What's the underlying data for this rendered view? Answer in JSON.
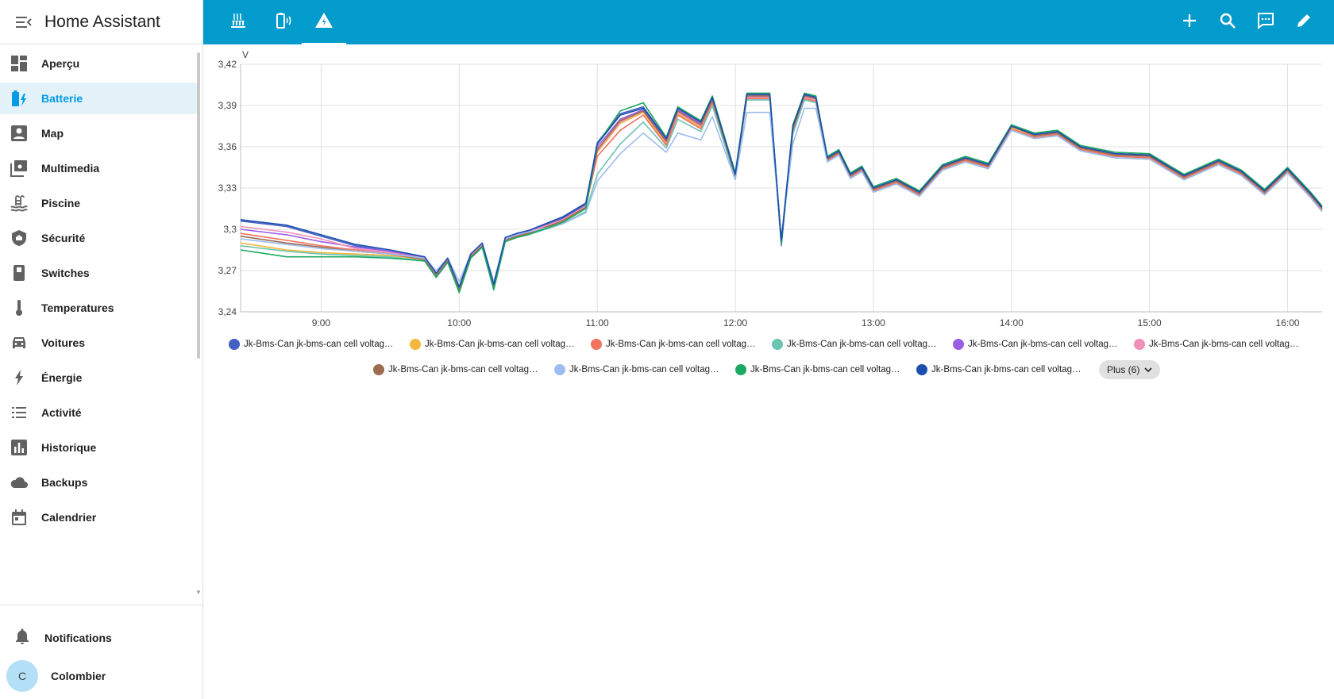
{
  "app": {
    "title": "Home Assistant"
  },
  "sidebar": {
    "items": [
      {
        "label": "Aperçu",
        "icon": "dashboard-icon",
        "active": false
      },
      {
        "label": "Batterie",
        "icon": "battery-charging-icon",
        "active": true
      },
      {
        "label": "Map",
        "icon": "account-box-icon",
        "active": false
      },
      {
        "label": "Multimedia",
        "icon": "multimedia-icon",
        "active": false
      },
      {
        "label": "Piscine",
        "icon": "pool-icon",
        "active": false
      },
      {
        "label": "Sécurité",
        "icon": "shield-icon",
        "active": false
      },
      {
        "label": "Switches",
        "icon": "switch-icon",
        "active": false
      },
      {
        "label": "Temperatures",
        "icon": "thermometer-icon",
        "active": false
      },
      {
        "label": "Voitures",
        "icon": "car-icon",
        "active": false
      },
      {
        "label": "Énergie",
        "icon": "lightning-icon",
        "active": false
      },
      {
        "label": "Activité",
        "icon": "list-icon",
        "active": false
      },
      {
        "label": "Historique",
        "icon": "chart-bar-icon",
        "active": false
      },
      {
        "label": "Backups",
        "icon": "cloud-icon",
        "active": false
      },
      {
        "label": "Calendrier",
        "icon": "calendar-icon",
        "active": false
      }
    ],
    "notifications_label": "Notifications",
    "user": {
      "name": "Colombier",
      "initial": "C"
    }
  },
  "topbar": {
    "tabs": [
      {
        "icon": "radiator-icon",
        "active": false
      },
      {
        "icon": "battery-sound-icon",
        "active": false
      },
      {
        "icon": "warning-icon",
        "active": true
      }
    ],
    "actions": [
      "add-icon",
      "search-icon",
      "assist-icon",
      "edit-icon"
    ]
  },
  "chart_data": {
    "type": "line",
    "title": "",
    "unit": "V",
    "ylabel": "V",
    "xlabel": "",
    "ylim": [
      3.24,
      3.42
    ],
    "y_ticks": [
      "3,24",
      "3,27",
      "3,3",
      "3,33",
      "3,36",
      "3,39",
      "3,42"
    ],
    "x_ticks": [
      "9:00",
      "10:00",
      "11:00",
      "12:00",
      "13:00",
      "14:00",
      "15:00",
      "16:00"
    ],
    "xlim": [
      "8:25",
      "16:15"
    ],
    "grid": true,
    "legend_position": "bottom",
    "x": [
      "8:25",
      "8:45",
      "9:00",
      "9:15",
      "9:30",
      "9:45",
      "9:50",
      "9:55",
      "10:00",
      "10:05",
      "10:10",
      "10:15",
      "10:20",
      "10:25",
      "10:30",
      "10:45",
      "10:55",
      "11:00",
      "11:10",
      "11:20",
      "11:30",
      "11:35",
      "11:45",
      "11:50",
      "12:00",
      "12:05",
      "12:15",
      "12:20",
      "12:25",
      "12:30",
      "12:35",
      "12:40",
      "12:45",
      "12:50",
      "12:55",
      "13:00",
      "13:10",
      "13:20",
      "13:30",
      "13:40",
      "13:50",
      "14:00",
      "14:10",
      "14:20",
      "14:30",
      "14:45",
      "15:00",
      "15:15",
      "15:30",
      "15:40",
      "15:50",
      "16:00",
      "16:10",
      "16:15"
    ],
    "series": [
      {
        "name": "Jk-Bms-Can jk-bms-can cell voltag…",
        "color": "#4361c2",
        "values": [
          3.306,
          3.302,
          3.295,
          3.288,
          3.284,
          3.279,
          3.267,
          3.278,
          3.257,
          3.281,
          3.289,
          3.259,
          3.293,
          3.296,
          3.298,
          3.308,
          3.318,
          3.363,
          3.384,
          3.389,
          3.366,
          3.388,
          3.378,
          3.396,
          3.34,
          3.398,
          3.398,
          3.29,
          3.375,
          3.398,
          3.396,
          3.352,
          3.357,
          3.34,
          3.345,
          3.33,
          3.336,
          3.327,
          3.346,
          3.352,
          3.347,
          3.375,
          3.369,
          3.371,
          3.36,
          3.355,
          3.354,
          3.339,
          3.35,
          3.342,
          3.328,
          3.344,
          3.326,
          3.316
        ]
      },
      {
        "name": "Jk-Bms-Can jk-bms-can cell voltag…",
        "color": "#f2b73c",
        "values": [
          3.29,
          3.285,
          3.283,
          3.282,
          3.281,
          3.278,
          3.266,
          3.277,
          3.256,
          3.28,
          3.288,
          3.258,
          3.292,
          3.295,
          3.297,
          3.306,
          3.316,
          3.356,
          3.377,
          3.385,
          3.362,
          3.384,
          3.374,
          3.393,
          3.339,
          3.396,
          3.396,
          3.292,
          3.372,
          3.396,
          3.394,
          3.351,
          3.356,
          3.339,
          3.344,
          3.329,
          3.335,
          3.326,
          3.345,
          3.351,
          3.346,
          3.374,
          3.368,
          3.37,
          3.359,
          3.354,
          3.353,
          3.338,
          3.349,
          3.341,
          3.327,
          3.343,
          3.325,
          3.315
        ]
      },
      {
        "name": "Jk-Bms-Can jk-bms-can cell voltag…",
        "color": "#f07260",
        "values": [
          3.297,
          3.292,
          3.288,
          3.285,
          3.283,
          3.279,
          3.267,
          3.278,
          3.257,
          3.281,
          3.289,
          3.259,
          3.293,
          3.296,
          3.298,
          3.307,
          3.317,
          3.353,
          3.372,
          3.383,
          3.361,
          3.383,
          3.373,
          3.392,
          3.338,
          3.395,
          3.395,
          3.291,
          3.371,
          3.395,
          3.393,
          3.35,
          3.355,
          3.338,
          3.343,
          3.328,
          3.334,
          3.325,
          3.344,
          3.35,
          3.345,
          3.373,
          3.367,
          3.369,
          3.358,
          3.353,
          3.352,
          3.337,
          3.348,
          3.34,
          3.326,
          3.342,
          3.324,
          3.314
        ]
      },
      {
        "name": "Jk-Bms-Can jk-bms-can cell voltag…",
        "color": "#6cc5b0",
        "values": [
          3.288,
          3.284,
          3.282,
          3.281,
          3.28,
          3.277,
          3.265,
          3.276,
          3.255,
          3.279,
          3.287,
          3.257,
          3.291,
          3.294,
          3.296,
          3.304,
          3.313,
          3.34,
          3.362,
          3.378,
          3.359,
          3.38,
          3.371,
          3.39,
          3.337,
          3.394,
          3.394,
          3.289,
          3.369,
          3.394,
          3.392,
          3.349,
          3.354,
          3.337,
          3.342,
          3.327,
          3.333,
          3.324,
          3.343,
          3.349,
          3.344,
          3.372,
          3.366,
          3.368,
          3.357,
          3.352,
          3.351,
          3.336,
          3.347,
          3.339,
          3.325,
          3.341,
          3.323,
          3.313
        ]
      },
      {
        "name": "Jk-Bms-Can jk-bms-can cell voltag…",
        "color": "#9b5de5",
        "values": [
          3.3,
          3.296,
          3.291,
          3.287,
          3.284,
          3.28,
          3.268,
          3.279,
          3.258,
          3.282,
          3.29,
          3.26,
          3.294,
          3.297,
          3.299,
          3.309,
          3.319,
          3.36,
          3.38,
          3.387,
          3.365,
          3.387,
          3.377,
          3.395,
          3.34,
          3.397,
          3.397,
          3.288,
          3.374,
          3.397,
          3.395,
          3.351,
          3.357,
          3.34,
          3.345,
          3.33,
          3.336,
          3.327,
          3.346,
          3.352,
          3.347,
          3.376,
          3.369,
          3.371,
          3.36,
          3.355,
          3.354,
          3.339,
          3.35,
          3.342,
          3.328,
          3.344,
          3.326,
          3.316
        ]
      },
      {
        "name": "Jk-Bms-Can jk-bms-can cell voltag…",
        "color": "#f28fb8",
        "values": [
          3.302,
          3.298,
          3.293,
          3.286,
          3.283,
          3.279,
          3.267,
          3.278,
          3.257,
          3.281,
          3.289,
          3.259,
          3.293,
          3.296,
          3.298,
          3.307,
          3.317,
          3.357,
          3.378,
          3.386,
          3.363,
          3.385,
          3.375,
          3.394,
          3.339,
          3.396,
          3.396,
          3.291,
          3.373,
          3.396,
          3.394,
          3.351,
          3.356,
          3.339,
          3.344,
          3.329,
          3.335,
          3.326,
          3.345,
          3.351,
          3.346,
          3.375,
          3.368,
          3.37,
          3.359,
          3.354,
          3.353,
          3.338,
          3.349,
          3.341,
          3.327,
          3.343,
          3.325,
          3.315
        ]
      },
      {
        "name": "Jk-Bms-Can jk-bms-can cell voltag…",
        "color": "#9c6b50",
        "values": [
          3.295,
          3.29,
          3.287,
          3.284,
          3.282,
          3.278,
          3.266,
          3.277,
          3.256,
          3.28,
          3.288,
          3.258,
          3.292,
          3.295,
          3.297,
          3.306,
          3.316,
          3.358,
          3.379,
          3.386,
          3.364,
          3.386,
          3.376,
          3.394,
          3.339,
          3.397,
          3.397,
          3.29,
          3.373,
          3.397,
          3.395,
          3.351,
          3.356,
          3.339,
          3.344,
          3.329,
          3.335,
          3.326,
          3.345,
          3.351,
          3.346,
          3.375,
          3.368,
          3.37,
          3.359,
          3.354,
          3.353,
          3.338,
          3.349,
          3.341,
          3.327,
          3.343,
          3.325,
          3.315
        ]
      },
      {
        "name": "Jk-Bms-Can jk-bms-can cell voltag…",
        "color": "#9dbcf0",
        "values": [
          3.293,
          3.289,
          3.286,
          3.284,
          3.282,
          3.279,
          3.27,
          3.279,
          3.262,
          3.282,
          3.29,
          3.262,
          3.293,
          3.296,
          3.298,
          3.304,
          3.312,
          3.335,
          3.355,
          3.37,
          3.356,
          3.37,
          3.365,
          3.382,
          3.336,
          3.385,
          3.385,
          3.294,
          3.362,
          3.388,
          3.388,
          3.349,
          3.354,
          3.337,
          3.342,
          3.327,
          3.333,
          3.324,
          3.343,
          3.349,
          3.344,
          3.372,
          3.366,
          3.368,
          3.357,
          3.352,
          3.351,
          3.336,
          3.347,
          3.339,
          3.325,
          3.341,
          3.323,
          3.313
        ]
      },
      {
        "name": "Jk-Bms-Can jk-bms-can cell voltag…",
        "color": "#1da861",
        "values": [
          3.285,
          3.28,
          3.28,
          3.28,
          3.279,
          3.277,
          3.265,
          3.276,
          3.254,
          3.279,
          3.287,
          3.256,
          3.291,
          3.294,
          3.296,
          3.305,
          3.315,
          3.362,
          3.386,
          3.392,
          3.367,
          3.389,
          3.379,
          3.397,
          3.341,
          3.399,
          3.399,
          3.289,
          3.376,
          3.399,
          3.397,
          3.353,
          3.358,
          3.341,
          3.346,
          3.331,
          3.337,
          3.328,
          3.347,
          3.353,
          3.348,
          3.376,
          3.37,
          3.372,
          3.361,
          3.356,
          3.355,
          3.34,
          3.351,
          3.343,
          3.329,
          3.345,
          3.327,
          3.317
        ]
      },
      {
        "name": "Jk-Bms-Can jk-bms-can cell voltag…",
        "color": "#1a4fb0",
        "values": [
          3.307,
          3.303,
          3.296,
          3.289,
          3.285,
          3.28,
          3.268,
          3.279,
          3.258,
          3.282,
          3.29,
          3.26,
          3.294,
          3.297,
          3.299,
          3.309,
          3.319,
          3.362,
          3.383,
          3.388,
          3.366,
          3.388,
          3.378,
          3.396,
          3.34,
          3.398,
          3.398,
          3.292,
          3.375,
          3.398,
          3.396,
          3.352,
          3.357,
          3.34,
          3.345,
          3.33,
          3.336,
          3.327,
          3.346,
          3.352,
          3.347,
          3.375,
          3.369,
          3.371,
          3.36,
          3.355,
          3.354,
          3.339,
          3.35,
          3.342,
          3.328,
          3.344,
          3.326,
          3.316
        ]
      }
    ],
    "more_label": "Plus (6)"
  }
}
